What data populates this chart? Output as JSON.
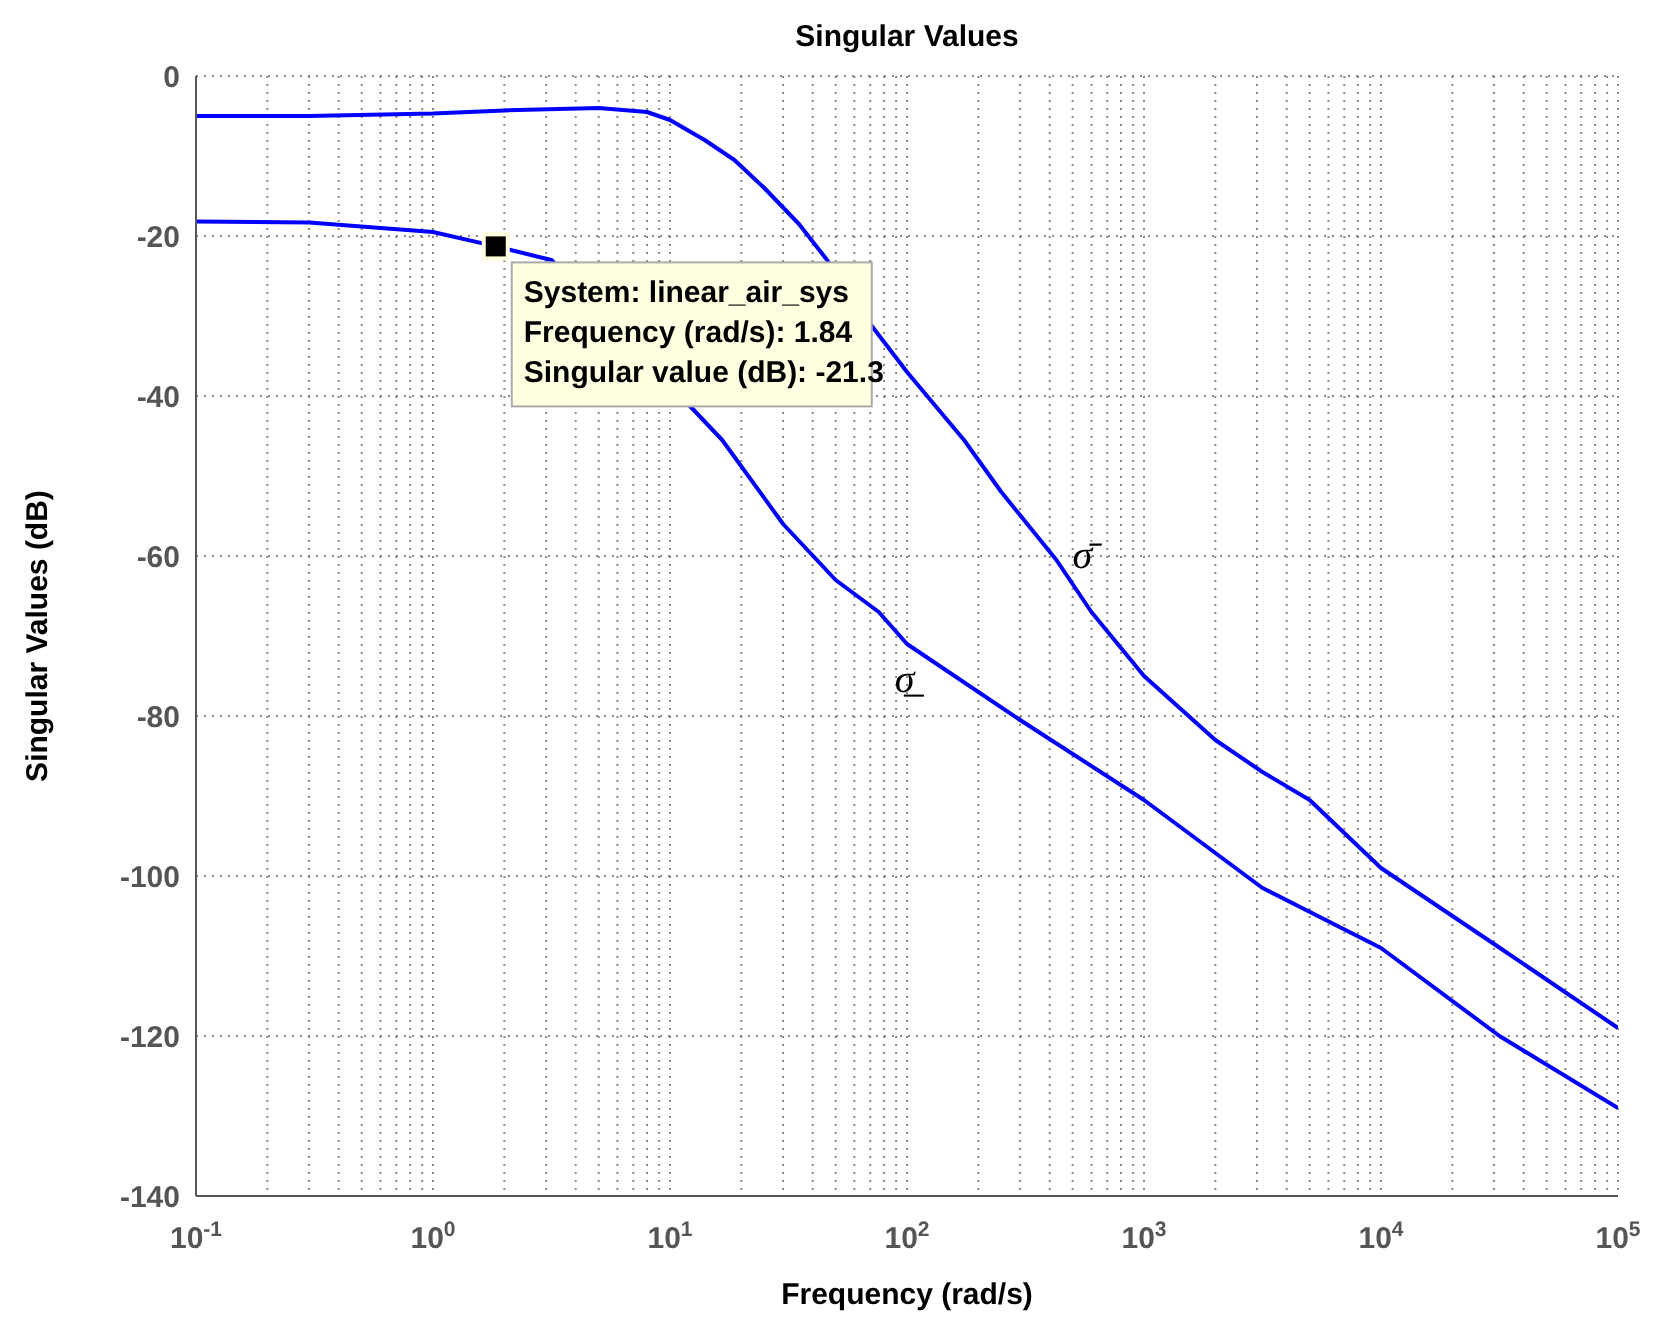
{
  "chart_data": {
    "type": "line",
    "title": "Singular Values",
    "xlabel": "Frequency (rad/s)",
    "ylabel": "Singular Values (dB)",
    "log": "x",
    "grid": true,
    "line_style": "solid",
    "marker": "none",
    "xlim": [
      0.1,
      100000
    ],
    "xticks": [
      {
        "value": 0.1,
        "label": "10$^{-1}$"
      },
      {
        "value": 1,
        "label": "10$^{0}$"
      },
      {
        "value": 10,
        "label": "10$^{1}$"
      },
      {
        "value": 100,
        "label": "10$^{2}$"
      },
      {
        "value": 1000,
        "label": "10$^{3}$"
      },
      {
        "value": 10000,
        "label": "10$^{4}$"
      },
      {
        "value": 100000,
        "label": "10$^{5}$"
      }
    ],
    "ylim": [
      -140,
      0
    ],
    "yticks": [
      -140,
      -120,
      -100,
      -80,
      -60,
      -40,
      -20,
      0
    ],
    "series": [
      {
        "name": "σ̄",
        "color": "#0000ff",
        "x": [
          0.1,
          0.3,
          1,
          2,
          5,
          8,
          10,
          14,
          18.7,
          25,
          35,
          46,
          70,
          100,
          174,
          250,
          427,
          600,
          1000,
          2000,
          3162,
          5000,
          10000,
          30000,
          100000
        ],
        "values": [
          -5,
          -5,
          -4.7,
          -4.3,
          -4,
          -4.5,
          -5.5,
          -8,
          -10.5,
          -14,
          -18.5,
          -23,
          -31,
          -37,
          -45.5,
          -52,
          -60.5,
          -67,
          -75,
          -83,
          -87,
          -90.5,
          -99,
          -108.5,
          -119
        ]
      },
      {
        "name": "σ̲",
        "color": "#0000ff",
        "x": [
          0.1,
          0.3,
          1,
          1.84,
          3.16,
          16.6,
          30,
          50,
          76,
          100,
          300,
          1000,
          3162,
          10000,
          31623,
          100000
        ],
        "values": [
          -18.2,
          -18.3,
          -19.5,
          -21.3,
          -23,
          -45.5,
          -56,
          -63,
          -67,
          -71,
          -80.5,
          -90.5,
          -101.5,
          -109,
          -120,
          -129
        ]
      }
    ],
    "annotations": [
      {
        "text": "System: linear_air_sys\nFrequency (rad/s): 1.84\nSingular value (dB): -21.3",
        "x": 1.84,
        "y": -21.3
      }
    ]
  }
}
